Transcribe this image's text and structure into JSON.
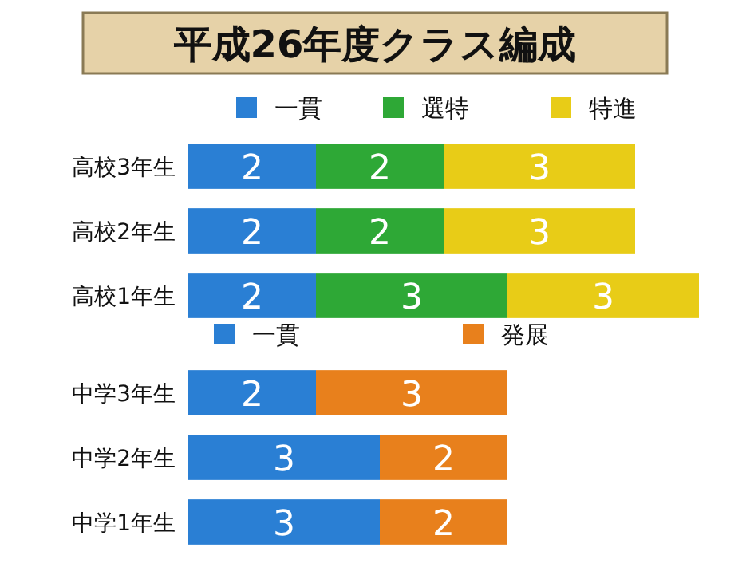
{
  "chart_data": [
    {
      "type": "bar",
      "title": "平成26年度クラス編成",
      "orientation": "horizontal",
      "stacked": true,
      "categories": [
        "高校3年生",
        "高校2年生",
        "高校1年生"
      ],
      "tick_labels": "y",
      "data_labels": true,
      "legend": "top",
      "series": [
        {
          "name": "一貫",
          "color": "#2a7fd4",
          "values": [
            2,
            2,
            2
          ]
        },
        {
          "name": "選特",
          "color": "#2ea836",
          "values": [
            2,
            2,
            3
          ]
        },
        {
          "name": "特進",
          "color": "#e8cc17",
          "values": [
            3,
            3,
            3
          ]
        }
      ]
    },
    {
      "type": "bar",
      "orientation": "horizontal",
      "stacked": true,
      "categories": [
        "中学3年生",
        "中学2年生",
        "中学1年生"
      ],
      "tick_labels": "y",
      "data_labels": true,
      "legend": "top",
      "series": [
        {
          "name": "一貫",
          "color": "#2a7fd4",
          "values": [
            2,
            3,
            3
          ]
        },
        {
          "name": "発展",
          "color": "#e8801c",
          "values": [
            3,
            2,
            2
          ]
        }
      ]
    }
  ]
}
